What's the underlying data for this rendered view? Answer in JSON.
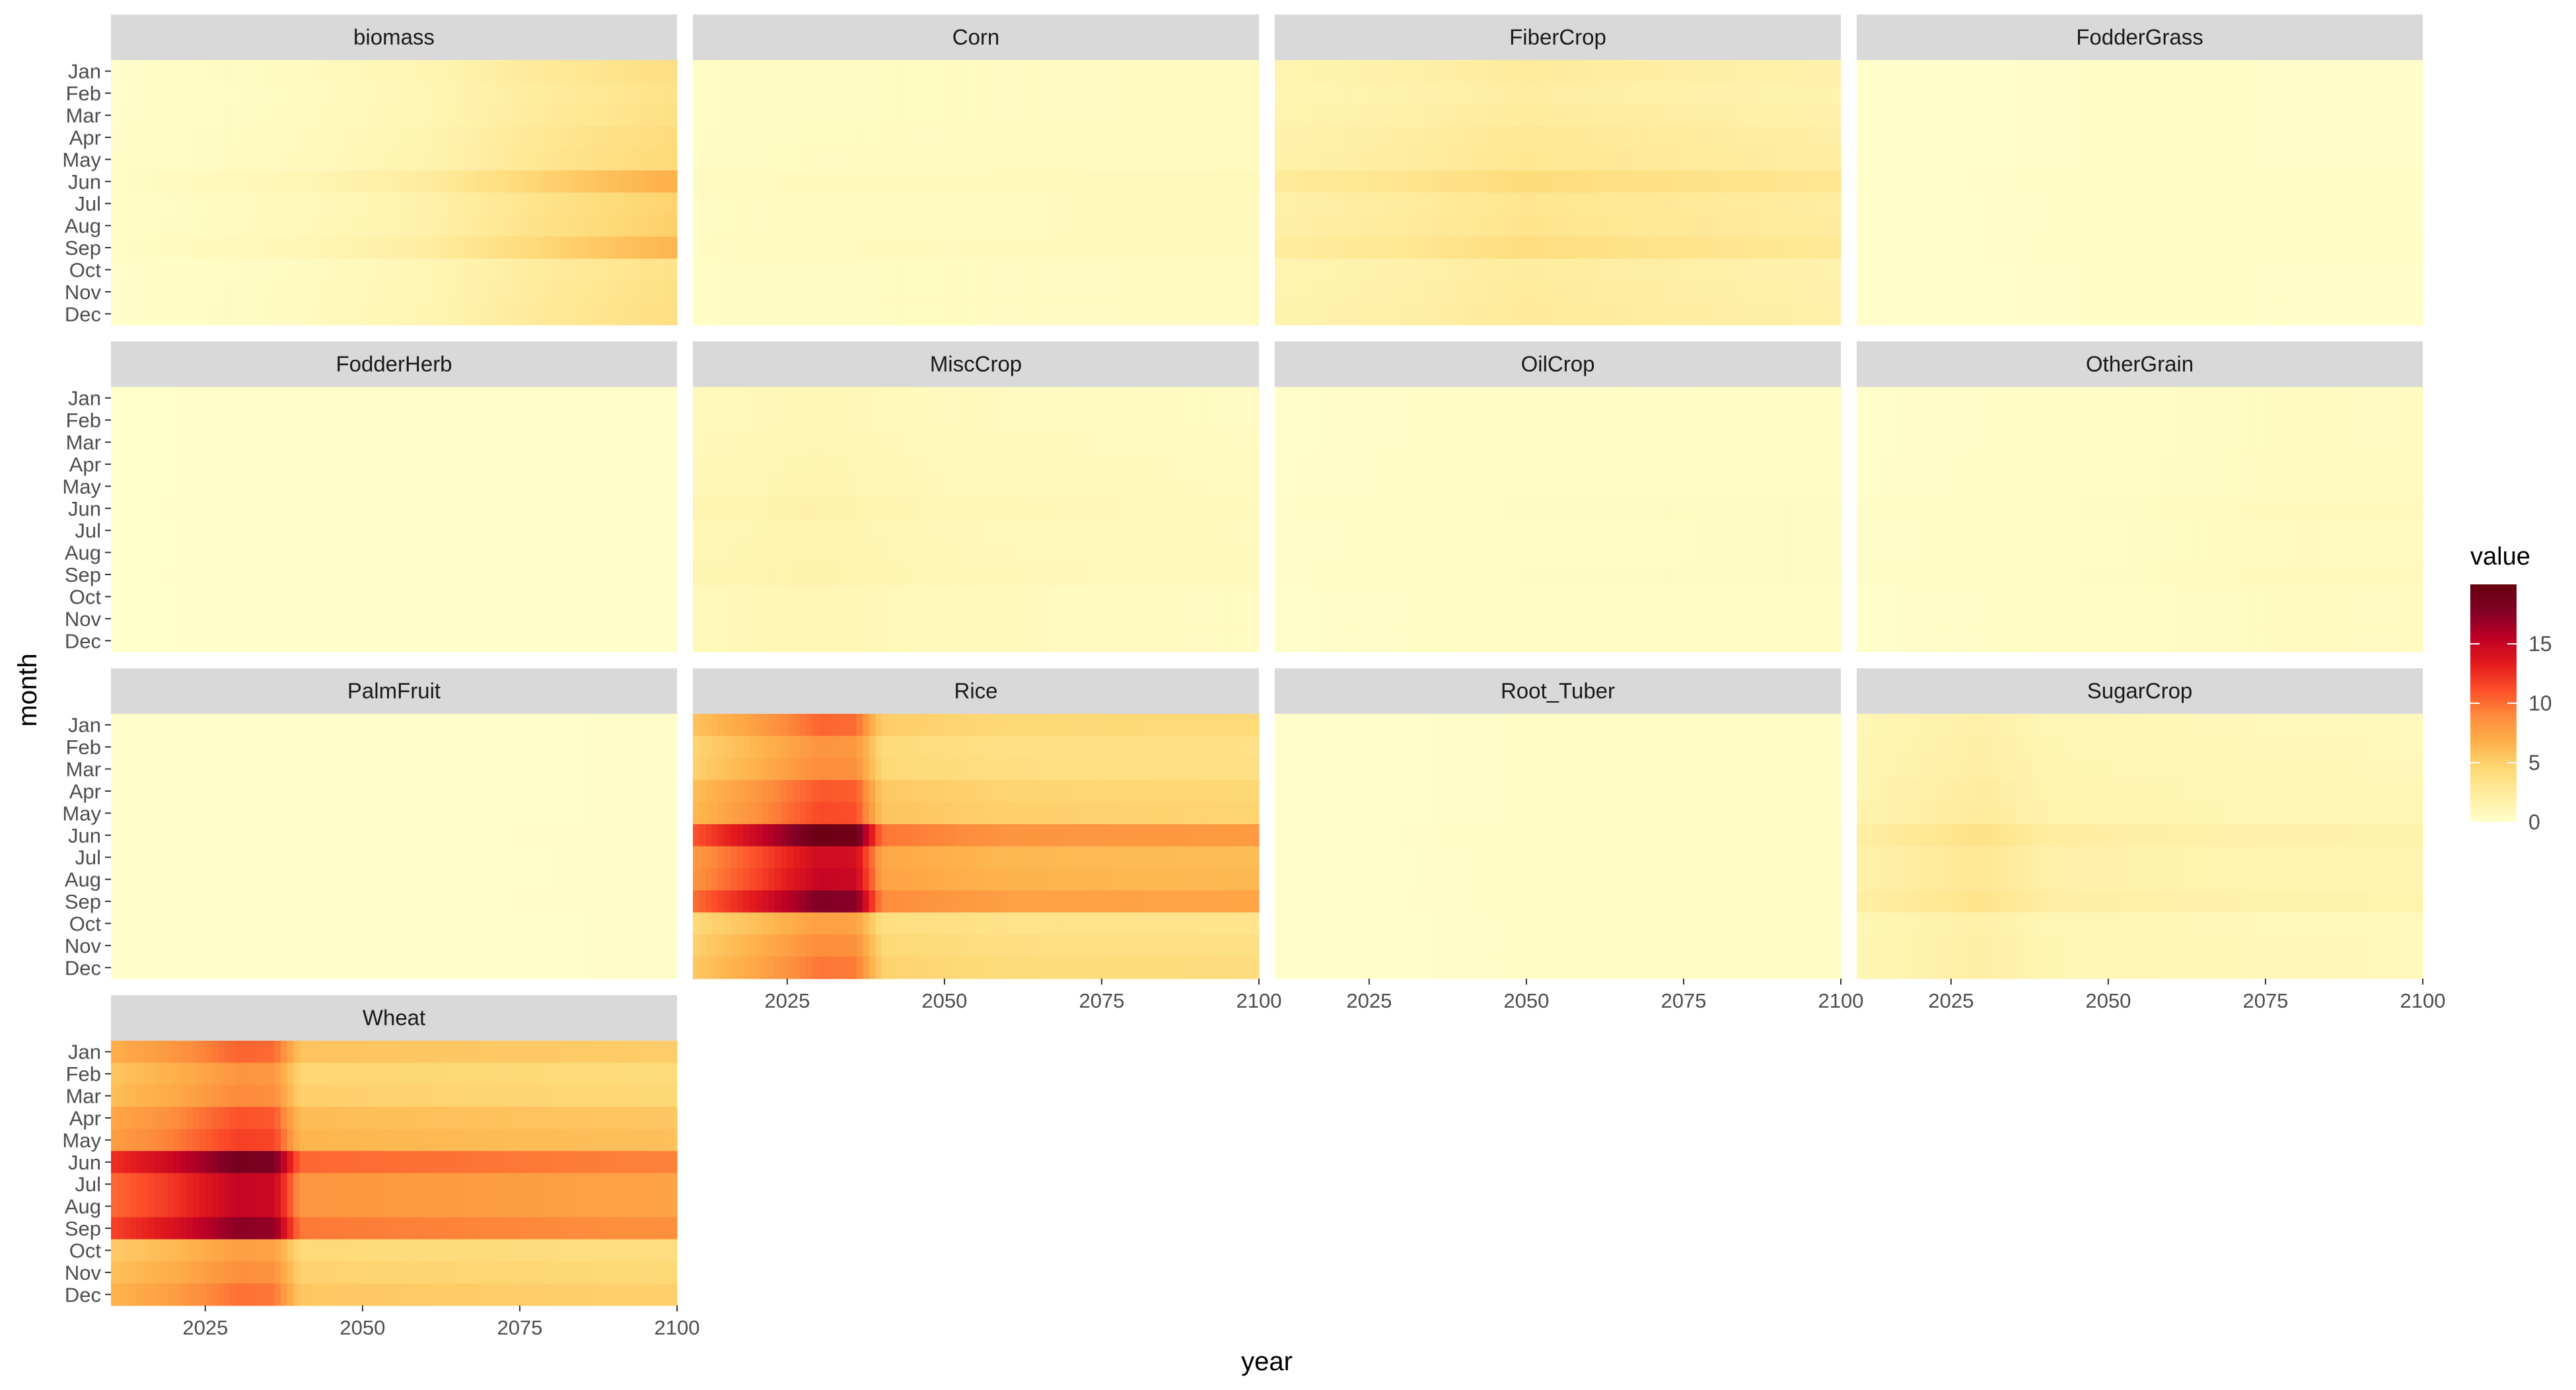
{
  "chart_data": {
    "type": "heatmap",
    "xlabel": "year",
    "ylabel": "month",
    "xlim": [
      2010,
      2100
    ],
    "x_ticks": [
      2025,
      2050,
      2075,
      2100
    ],
    "months": [
      "Jan",
      "Feb",
      "Mar",
      "Apr",
      "May",
      "Jun",
      "Jul",
      "Aug",
      "Sep",
      "Oct",
      "Nov",
      "Dec"
    ],
    "legend": {
      "title": "value",
      "min": 0,
      "max": 20,
      "ticks": [
        0,
        5,
        10,
        15
      ],
      "colors": [
        "#ffffcc",
        "#ffeda0",
        "#fed976",
        "#feb24c",
        "#fd8d3c",
        "#fc4e2a",
        "#e31a1c",
        "#bd0026",
        "#800026",
        "#67000d"
      ]
    },
    "panels": [
      {
        "name": "biomass",
        "profile": [
          [
            2010,
            0.2
          ],
          [
            2040,
            0.6
          ],
          [
            2060,
            1.2
          ],
          [
            2080,
            2.6
          ],
          [
            2095,
            3.4
          ],
          [
            2100,
            3.6
          ]
        ],
        "months": [
          1.05,
          0.95,
          1.0,
          1.15,
          1.2,
          1.9,
          1.35,
          1.4,
          1.8,
          0.95,
          1.0,
          1.05
        ]
      },
      {
        "name": "Corn",
        "profile": [
          [
            2010,
            0.4
          ],
          [
            2025,
            0.5
          ],
          [
            2050,
            0.55
          ],
          [
            2100,
            0.6
          ]
        ],
        "months": [
          1,
          1,
          1,
          1.05,
          1.1,
          1.4,
          1.2,
          1.2,
          1.3,
          1,
          1,
          1
        ]
      },
      {
        "name": "FiberCrop",
        "profile": [
          [
            2010,
            1.6
          ],
          [
            2030,
            2.0
          ],
          [
            2050,
            2.7
          ],
          [
            2065,
            2.4
          ],
          [
            2100,
            1.9
          ]
        ],
        "months": [
          0.9,
          0.8,
          0.9,
          1.05,
          1.1,
          1.55,
          1.15,
          1.2,
          1.45,
          0.85,
          0.9,
          0.95
        ]
      },
      {
        "name": "FodderGrass",
        "profile": [
          [
            2010,
            0.1
          ],
          [
            2050,
            0.3
          ],
          [
            2100,
            0.25
          ]
        ],
        "months": [
          1,
          1,
          1,
          1,
          1,
          1.2,
          1.1,
          1.1,
          1.15,
          1,
          1,
          1
        ]
      },
      {
        "name": "FodderHerb",
        "profile": [
          [
            2010,
            0.05
          ],
          [
            2100,
            0.15
          ]
        ],
        "months": [
          1,
          1,
          1,
          1,
          1,
          1.1,
          1,
          1,
          1.1,
          1,
          1,
          1
        ]
      },
      {
        "name": "MiscCrop",
        "profile": [
          [
            2010,
            0.9
          ],
          [
            2030,
            1.2
          ],
          [
            2050,
            0.8
          ],
          [
            2100,
            0.55
          ]
        ],
        "months": [
          0.9,
          0.9,
          1,
          1.1,
          1.15,
          1.4,
          1.2,
          1.25,
          1.35,
          0.95,
          0.95,
          0.95
        ]
      },
      {
        "name": "OilCrop",
        "profile": [
          [
            2010,
            0.2
          ],
          [
            2050,
            0.35
          ],
          [
            2100,
            0.4
          ]
        ],
        "months": [
          1,
          1,
          1,
          1.05,
          1.05,
          1.3,
          1.15,
          1.15,
          1.25,
          1,
          1,
          1
        ]
      },
      {
        "name": "OtherGrain",
        "profile": [
          [
            2010,
            0.2
          ],
          [
            2050,
            0.35
          ],
          [
            2080,
            0.6
          ],
          [
            2100,
            0.55
          ]
        ],
        "months": [
          1,
          1,
          1,
          1.05,
          1.05,
          1.3,
          1.15,
          1.15,
          1.3,
          1,
          1,
          1
        ]
      },
      {
        "name": "PalmFruit",
        "profile": [
          [
            2010,
            0.1
          ],
          [
            2100,
            0.25
          ]
        ],
        "months": [
          1,
          1,
          1,
          1,
          1,
          1.1,
          1.05,
          1.05,
          1.1,
          1,
          1,
          1
        ]
      },
      {
        "name": "Rice",
        "profile": [
          [
            2010,
            6.0
          ],
          [
            2020,
            8.2
          ],
          [
            2030,
            10.8
          ],
          [
            2036,
            10.6
          ],
          [
            2040,
            5.4
          ],
          [
            2060,
            4.7
          ],
          [
            2100,
            4.5
          ]
        ],
        "months": [
          0.95,
          0.78,
          0.82,
          1.0,
          1.05,
          1.8,
          1.35,
          1.4,
          1.65,
          0.72,
          0.82,
          0.9
        ]
      },
      {
        "name": "Root_Tuber",
        "profile": [
          [
            2010,
            0.1
          ],
          [
            2050,
            0.3
          ],
          [
            2100,
            0.3
          ]
        ],
        "months": [
          1,
          1,
          1,
          1,
          1,
          1.15,
          1.05,
          1.05,
          1.1,
          1,
          1,
          1
        ]
      },
      {
        "name": "SugarCrop",
        "profile": [
          [
            2010,
            1.3
          ],
          [
            2030,
            2.2
          ],
          [
            2040,
            1.4
          ],
          [
            2070,
            1.1
          ],
          [
            2100,
            1.0
          ]
        ],
        "months": [
          0.85,
          0.9,
          0.95,
          1.05,
          1.1,
          1.6,
          1.3,
          1.3,
          1.5,
          0.85,
          0.9,
          0.9
        ]
      },
      {
        "name": "Wheat",
        "profile": [
          [
            2010,
            7.5
          ],
          [
            2020,
            9.0
          ],
          [
            2030,
            11.2
          ],
          [
            2036,
            11.0
          ],
          [
            2040,
            6.2
          ],
          [
            2060,
            6.0
          ],
          [
            2100,
            5.6
          ]
        ],
        "months": [
          0.92,
          0.75,
          0.8,
          0.98,
          1.05,
          1.65,
          1.35,
          1.35,
          1.55,
          0.7,
          0.78,
          0.88
        ]
      }
    ]
  }
}
